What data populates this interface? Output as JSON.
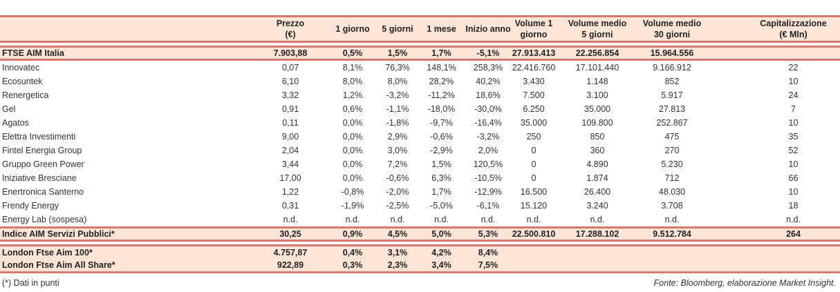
{
  "headers": [
    "",
    "Prezzo\n(€)",
    "1 giorno",
    "5 giorni",
    "1 mese",
    "Inizio anno",
    "Volume 1\ngiorno",
    "Volume medio\n5 giorni",
    "Volume medio\n30 giorni",
    "Capitalizzazione\n(€ Mln)"
  ],
  "ftse": [
    "FTSE AIM Italia",
    "7.903,88",
    "0,5%",
    "1,5%",
    "1,7%",
    "-5,1%",
    "27.913.413",
    "22.256.854",
    "15.964.556",
    ""
  ],
  "rows": [
    [
      "Innovatec",
      "0,07",
      "8,1%",
      "76,3%",
      "148,1%",
      "258,3%",
      "22.416.760",
      "17.101.440",
      "9.166.912",
      "22"
    ],
    [
      "Ecosuntek",
      "6,10",
      "8,0%",
      "8,0%",
      "28,2%",
      "40,2%",
      "3.430",
      "1.148",
      "852",
      "10"
    ],
    [
      "Renergetica",
      "3,32",
      "1,2%",
      "-3,2%",
      "-11,2%",
      "18,6%",
      "7.500",
      "3.100",
      "5.917",
      "24"
    ],
    [
      "Gel",
      "0,91",
      "0,6%",
      "-1,1%",
      "-18,0%",
      "-30,0%",
      "6.250",
      "35.000",
      "27.813",
      "7"
    ],
    [
      "Agatos",
      "0,11",
      "0,0%",
      "-1,8%",
      "-9,7%",
      "-16,4%",
      "35.000",
      "109.800",
      "252.867",
      "10"
    ],
    [
      "Elettra Investimenti",
      "9,00",
      "0,0%",
      "2,9%",
      "-0,6%",
      "-3,2%",
      "250",
      "850",
      "475",
      "35"
    ],
    [
      "Fintel Energia Group",
      "2,04",
      "0,0%",
      "3,0%",
      "-2,9%",
      "2,0%",
      "0",
      "360",
      "270",
      "52"
    ],
    [
      "Gruppo Green Power",
      "3,44",
      "0,0%",
      "7,2%",
      "1,5%",
      "120,5%",
      "0",
      "4.890",
      "5.230",
      "10"
    ],
    [
      "Iniziative Bresciane",
      "17,00",
      "0,0%",
      "-0,6%",
      "6,3%",
      "-10,5%",
      "0",
      "1.874",
      "712",
      "66"
    ],
    [
      "Enertronica Santerno",
      "1,22",
      "-0,8%",
      "-2,0%",
      "1,7%",
      "-12,9%",
      "16.500",
      "26.400",
      "48.030",
      "10"
    ],
    [
      "Frendy Energy",
      "0,31",
      "-1,9%",
      "-2,5%",
      "-5,0%",
      "-6,1%",
      "15.120",
      "3.240",
      "3.708",
      "18"
    ],
    [
      "Energy Lab (sospesa)",
      "n.d.",
      "n.d.",
      "n.d.",
      "n.d.",
      "n.d.",
      "n.d.",
      "n.d.",
      "n.d.",
      "n.d."
    ]
  ],
  "index": [
    "Indice AIM Servizi Pubblici*",
    "30,25",
    "0,9%",
    "4,5%",
    "5,0%",
    "5,3%",
    "22.500.810",
    "17.288.102",
    "9.512.784",
    "264"
  ],
  "london": [
    [
      "London Ftse Aim 100*",
      "4.757,87",
      "0,4%",
      "3,1%",
      "4,2%",
      "8,4%",
      "",
      "",
      "",
      ""
    ],
    [
      "London Ftse Aim All Share*",
      "922,89",
      "0,3%",
      "2,3%",
      "3,4%",
      "7,5%",
      "",
      "",
      "",
      ""
    ]
  ],
  "footnote": "(*) Dati in punti",
  "source": "Fonte: Bloomberg, elaborazione Market Insight."
}
